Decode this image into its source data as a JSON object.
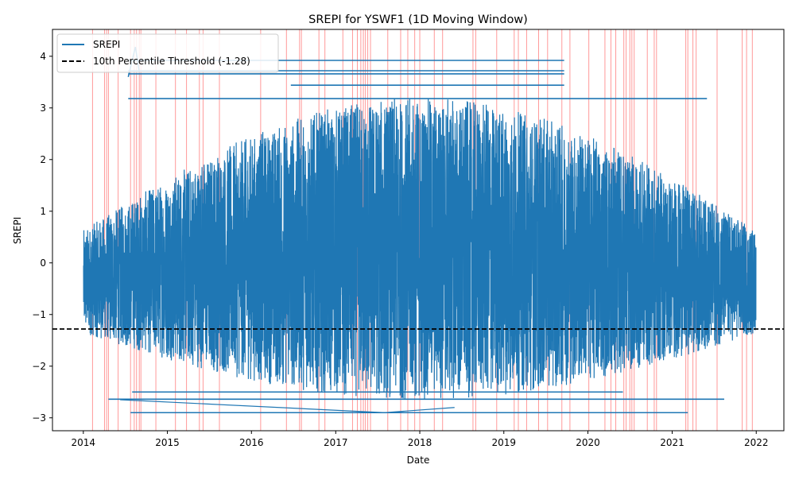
{
  "chart_data": {
    "type": "line",
    "title": "SREPI for YSWF1 (1D Moving Window)",
    "xlabel": "Date",
    "ylabel": "SREPI",
    "xlim": [
      "2013-08-20",
      "2022-05-01"
    ],
    "ylim": [
      -3.25,
      4.52
    ],
    "x_ticks": [
      "2014",
      "2015",
      "2016",
      "2017",
      "2018",
      "2019",
      "2020",
      "2021",
      "2022"
    ],
    "y_ticks": [
      -3,
      -2,
      -1,
      0,
      1,
      2,
      3,
      4
    ],
    "grid": false,
    "legend_position": "top-left",
    "series": [
      {
        "name": "SREPI",
        "color": "#1f77b4",
        "style": "solid",
        "data_start": "2014-01-02",
        "data_end": "2021-12-31",
        "y_max": 4.18,
        "y_min": -2.9
      }
    ],
    "threshold": {
      "name": "10th Percentile Threshold (-1.28)",
      "value": -1.28,
      "color": "#000000",
      "style": "dashed"
    },
    "drought_markers": {
      "color": "#ff0000",
      "dates": [
        "2014-02-10",
        "2014-04-03",
        "2014-04-12",
        "2014-04-20",
        "2014-06-01",
        "2014-07-25",
        "2014-08-10",
        "2014-08-20",
        "2014-09-01",
        "2014-09-08",
        "2014-11-12",
        "2015-02-05",
        "2015-03-25",
        "2015-05-20",
        "2015-06-05",
        "2015-08-15",
        "2016-02-10",
        "2016-06-01",
        "2016-07-28",
        "2016-08-05",
        "2016-10-20",
        "2016-11-15",
        "2017-02-01",
        "2017-03-15",
        "2017-04-05",
        "2017-04-20",
        "2017-05-01",
        "2017-05-10",
        "2017-05-20",
        "2017-06-01",
        "2017-08-15",
        "2017-10-10",
        "2017-11-10",
        "2017-12-10",
        "2018-01-01",
        "2018-03-05",
        "2018-04-10",
        "2018-08-20",
        "2018-09-01",
        "2018-12-01",
        "2019-02-15",
        "2019-03-05",
        "2019-04-10",
        "2019-06-01",
        "2019-07-10",
        "2019-09-10",
        "2019-10-15",
        "2020-01-05",
        "2020-03-15",
        "2020-04-10",
        "2020-05-01",
        "2020-06-05",
        "2020-06-15",
        "2020-07-01",
        "2020-07-10",
        "2020-07-20",
        "2020-09-15",
        "2020-10-15",
        "2020-10-25",
        "2021-03-01",
        "2021-03-10",
        "2021-04-01",
        "2021-04-15",
        "2021-07-15",
        "2021-11-01",
        "2021-11-20",
        "2021-12-15"
      ]
    }
  }
}
